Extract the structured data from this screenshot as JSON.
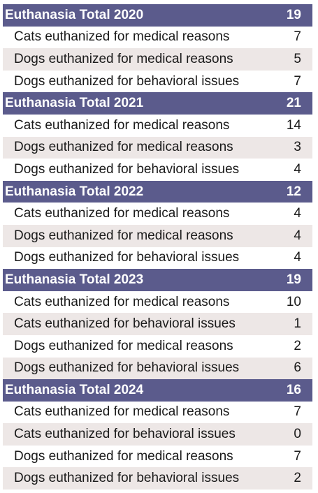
{
  "colors": {
    "header_bg": "#5b5b8c",
    "header_text": "#ffffff",
    "alt_row_bg": "#ede7e6",
    "row_text": "#1a1a1a"
  },
  "groups": [
    {
      "title": "Euthanasia Total 2020",
      "total": "19",
      "items": [
        {
          "label": "Cats euthanized for medical reasons",
          "value": "7"
        },
        {
          "label": "Dogs euthanized for medical reasons",
          "value": "5"
        },
        {
          "label": "Dogs euthanized for behavioral issues",
          "value": "7"
        }
      ]
    },
    {
      "title": "Euthanasia Total 2021",
      "total": "21",
      "items": [
        {
          "label": "Cats euthanized for medical reasons",
          "value": "14"
        },
        {
          "label": "Dogs euthanized for medical reasons",
          "value": "3"
        },
        {
          "label": "Dogs euthanized for behavioral issues",
          "value": "4"
        }
      ]
    },
    {
      "title": "Euthanasia Total 2022",
      "total": "12",
      "items": [
        {
          "label": "Cats euthanized for medical reasons",
          "value": "4"
        },
        {
          "label": "Dogs euthanized for medical reasons",
          "value": "4"
        },
        {
          "label": "Dogs euthanized for behavioral issues",
          "value": "4"
        }
      ]
    },
    {
      "title": "Euthanasia Total 2023",
      "total": "19",
      "items": [
        {
          "label": "Cats euthanized for medical reasons",
          "value": "10"
        },
        {
          "label": "Cats euthanized for behavioral issues",
          "value": "1"
        },
        {
          "label": "Dogs euthanized for medical reasons",
          "value": "2"
        },
        {
          "label": "Dogs euthanized for behavioral issues",
          "value": "6"
        }
      ]
    },
    {
      "title": "Euthanasia Total 2024",
      "total": "16",
      "items": [
        {
          "label": "Cats euthanized for medical reasons",
          "value": "7"
        },
        {
          "label": "Cats euthanized for behavioral issues",
          "value": "0"
        },
        {
          "label": "Dogs euthanized for medical reasons",
          "value": "7"
        },
        {
          "label": "Dogs euthanized for behavioral issues",
          "value": "2"
        }
      ]
    }
  ]
}
